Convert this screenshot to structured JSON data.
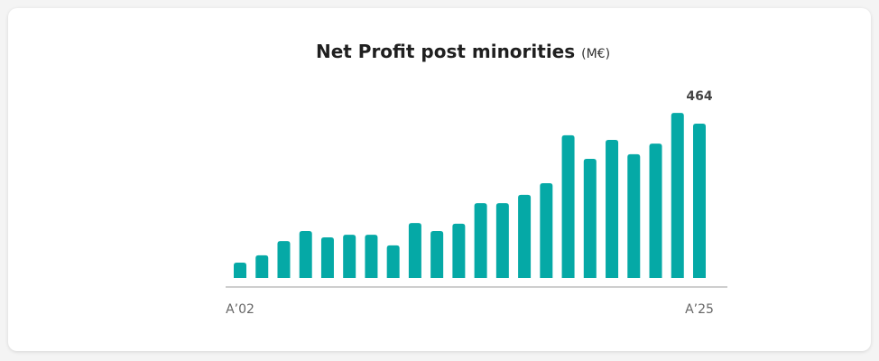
{
  "chart_data": {
    "type": "bar",
    "title": "Net Profit post minorities",
    "unit": "(M€)",
    "categories": [
      "A’02",
      null,
      null,
      null,
      null,
      null,
      null,
      null,
      null,
      null,
      null,
      null,
      null,
      null,
      null,
      null,
      null,
      null,
      null,
      null,
      null,
      "A’25"
    ],
    "values": [
      46,
      68,
      111,
      141,
      122,
      130,
      130,
      98,
      165,
      141,
      163,
      225,
      225,
      250,
      285,
      429,
      358,
      415,
      372,
      404,
      496,
      464
    ],
    "color": "#05a9a6",
    "ylim": [
      0,
      500
    ]
  }
}
